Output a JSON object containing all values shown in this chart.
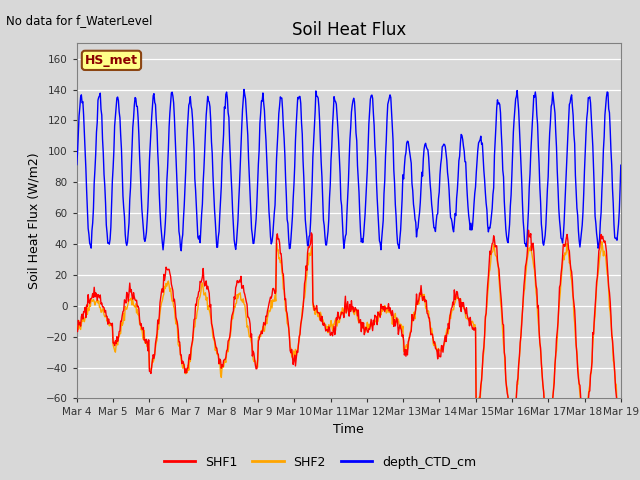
{
  "title": "Soil Heat Flux",
  "top_left_text": "No data for f_WaterLevel",
  "ylabel": "Soil Heat Flux (W/m2)",
  "xlabel": "Time",
  "ylim": [
    -60,
    170
  ],
  "yticks": [
    -60,
    -40,
    -20,
    0,
    20,
    40,
    60,
    80,
    100,
    120,
    140,
    160
  ],
  "fig_bg_color": "#d8d8d8",
  "plot_bg_color": "#d8d8d8",
  "hs_met_label": "HS_met",
  "hs_met_bg": "#ffff88",
  "hs_met_border": "#8B4513",
  "hs_met_text_color": "#8B0000",
  "shf1_color": "#ff0000",
  "shf2_color": "#ffa500",
  "depth_color": "#0000ff",
  "line_width": 1.0,
  "n_days": 15,
  "xtick_labels": [
    "Mar 4",
    "Mar 5",
    "Mar 6",
    "Mar 7",
    "Mar 8",
    "Mar 9",
    "Mar 10",
    "Mar 11",
    "Mar 12",
    "Mar 13",
    "Mar 14",
    "Mar 15",
    "Mar 16",
    "Mar 17",
    "Mar 18",
    "Mar 19"
  ],
  "legend_labels": [
    "SHF1",
    "SHF2",
    "depth_CTD_cm"
  ]
}
